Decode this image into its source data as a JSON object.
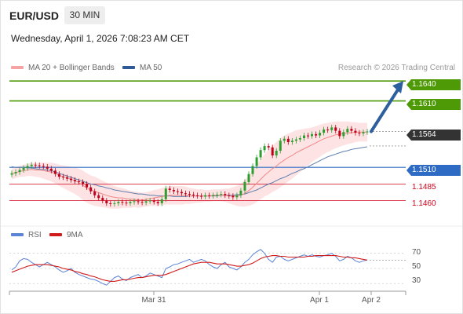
{
  "header": {
    "symbol": "EUR/USD",
    "timeframe": "30 MIN",
    "datetime": "Wednesday, April 1, 2026 7:08:23 AM CET",
    "legend_ma20": "MA 20 + Bollinger Bands",
    "legend_ma50": "MA 50",
    "credit": "Research © 2026 Trading Central",
    "legend_rsi": "RSI",
    "legend_9ma": "9MA"
  },
  "colors": {
    "ma20": "#f08a8a",
    "bollinger_fill": "#fde3e3",
    "ma50": "#5f7fae",
    "resistance": "#4e9a06",
    "pivot": "#2d6bc4",
    "support": "#d0021b",
    "current": "#333333",
    "arrow": "#2d5f9e",
    "up_candle": "#2e9e2e",
    "down_candle": "#c0001a",
    "rsi": "#5b84d6",
    "rsi_ma": "#d11b1b"
  },
  "chart_data": [
    {
      "type": "candlestick",
      "title": "EUR/USD",
      "timeframe": "30 MIN",
      "x_tick_labels": [
        "Mar 31",
        "Apr 1",
        "Apr 2"
      ],
      "ylim": [
        1.1424,
        1.1652
      ],
      "levels": [
        {
          "value": 1.164,
          "label": "1.1640",
          "kind": "resistance"
        },
        {
          "value": 1.161,
          "label": "1.1610",
          "kind": "resistance"
        },
        {
          "value": 1.1564,
          "label": "1.1564",
          "kind": "current"
        },
        {
          "value": 1.151,
          "label": "1.1510",
          "kind": "pivot"
        },
        {
          "value": 1.1485,
          "label": "1.1485",
          "kind": "support"
        },
        {
          "value": 1.146,
          "label": "1.1460",
          "kind": "support"
        }
      ],
      "forecast_arrow": {
        "from_price": 1.1564,
        "to_price": 1.164
      },
      "closes": [
        1.1501,
        1.1503,
        1.1506,
        1.1509,
        1.1512,
        1.1514,
        1.1513,
        1.1512,
        1.1511,
        1.1508,
        1.1505,
        1.15,
        1.1496,
        1.1495,
        1.1493,
        1.1491,
        1.1489,
        1.1488,
        1.1485,
        1.148,
        1.1474,
        1.1468,
        1.1464,
        1.146,
        1.1456,
        1.1455,
        1.1456,
        1.1458,
        1.1457,
        1.1456,
        1.1458,
        1.1459,
        1.1458,
        1.1457,
        1.1459,
        1.146,
        1.1458,
        1.1456,
        1.1462,
        1.1478,
        1.1476,
        1.1474,
        1.1473,
        1.1471,
        1.147,
        1.1469,
        1.1468,
        1.1467,
        1.1466,
        1.1468,
        1.1467,
        1.1468,
        1.1469,
        1.147,
        1.1468,
        1.1467,
        1.1465,
        1.1468,
        1.1475,
        1.1488,
        1.15,
        1.1512,
        1.1525,
        1.1536,
        1.1542,
        1.154,
        1.1528,
        1.1535,
        1.155,
        1.1553,
        1.1548,
        1.155,
        1.1552,
        1.1554,
        1.1558,
        1.1557,
        1.156,
        1.1558,
        1.1562,
        1.1567,
        1.1566,
        1.157,
        1.1565,
        1.1557,
        1.1563,
        1.1568,
        1.1565,
        1.1562,
        1.1561,
        1.1563,
        1.1564
      ],
      "ma20": [
        1.15,
        1.1502,
        1.1504,
        1.1505,
        1.1506,
        1.1507,
        1.1506,
        1.1506,
        1.1505,
        1.1504,
        1.1503,
        1.1501,
        1.1498,
        1.1496,
        1.1494,
        1.1492,
        1.149,
        1.1487,
        1.1483,
        1.1479,
        1.1476,
        1.1474,
        1.1472,
        1.147,
        1.1468,
        1.1466,
        1.1465,
        1.1464,
        1.1464,
        1.1463,
        1.1462,
        1.1462,
        1.1461,
        1.1461,
        1.1462,
        1.1463,
        1.1464,
        1.1465,
        1.1466,
        1.1467,
        1.1468,
        1.1468,
        1.1468,
        1.1468,
        1.1468,
        1.1467,
        1.1467,
        1.1467,
        1.1467,
        1.1467,
        1.1467,
        1.1468,
        1.1468,
        1.1468,
        1.1468,
        1.1467,
        1.1467,
        1.1467,
        1.1468,
        1.1471,
        1.1475,
        1.148,
        1.1486,
        1.1492,
        1.1498,
        1.1503,
        1.1508,
        1.1512,
        1.1517,
        1.1521,
        1.1525,
        1.1528,
        1.1532,
        1.1535,
        1.1538,
        1.1541,
        1.1544,
        1.1547,
        1.155,
        1.1553,
        1.1555,
        1.1557,
        1.1559,
        1.156,
        1.1561,
        1.1562,
        1.1562,
        1.1563,
        1.1563,
        1.1563,
        1.1563
      ],
      "ma50": [
        1.1511,
        1.151,
        1.151,
        1.151,
        1.1509,
        1.1509,
        1.1508,
        1.1507,
        1.1507,
        1.1506,
        1.1505,
        1.1503,
        1.1501,
        1.1499,
        1.1497,
        1.1495,
        1.1493,
        1.1491,
        1.1489,
        1.1487,
        1.1485,
        1.1484,
        1.1482,
        1.1481,
        1.1479,
        1.1478,
        1.1476,
        1.1475,
        1.1474,
        1.1473,
        1.1472,
        1.1471,
        1.147,
        1.147,
        1.1469,
        1.1468,
        1.1468,
        1.1467,
        1.1467,
        1.1467,
        1.1467,
        1.1466,
        1.1466,
        1.1466,
        1.1466,
        1.1467,
        1.1467,
        1.1467,
        1.1467,
        1.1467,
        1.1467,
        1.1467,
        1.1467,
        1.1468,
        1.1468,
        1.1468,
        1.1468,
        1.1469,
        1.1469,
        1.147,
        1.1472,
        1.1474,
        1.1476,
        1.1479,
        1.1482,
        1.1485,
        1.1487,
        1.149,
        1.1493,
        1.1495,
        1.1498,
        1.1501,
        1.1503,
        1.1506,
        1.1508,
        1.1511,
        1.1514,
        1.1517,
        1.152,
        1.1523,
        1.1526,
        1.1528,
        1.153,
        1.1532,
        1.1534,
        1.1535,
        1.1537,
        1.1538,
        1.1539,
        1.154,
        1.1541
      ],
      "bollinger_half_width": [
        0.0008,
        0.0008,
        0.0008,
        0.0009,
        0.0009,
        0.001,
        0.001,
        0.0011,
        0.0012,
        0.0013,
        0.0014,
        0.0015,
        0.0016,
        0.0017,
        0.0018,
        0.0019,
        0.002,
        0.0021,
        0.0022,
        0.0022,
        0.0022,
        0.0022,
        0.0021,
        0.002,
        0.0019,
        0.0018,
        0.0017,
        0.0016,
        0.0015,
        0.0014,
        0.0013,
        0.0012,
        0.0012,
        0.0011,
        0.0011,
        0.0011,
        0.0012,
        0.0012,
        0.0013,
        0.0013,
        0.0014,
        0.0014,
        0.0014,
        0.0014,
        0.0013,
        0.0012,
        0.0011,
        0.001,
        0.001,
        0.0009,
        0.0009,
        0.0009,
        0.0009,
        0.0009,
        0.001,
        0.0011,
        0.0013,
        0.0015,
        0.0017,
        0.002,
        0.0023,
        0.0026,
        0.0028,
        0.003,
        0.0032,
        0.0034,
        0.0035,
        0.0036,
        0.0037,
        0.0037,
        0.0036,
        0.0035,
        0.0034,
        0.0032,
        0.003,
        0.0028,
        0.0026,
        0.0025,
        0.0024,
        0.0023,
        0.0022,
        0.0021,
        0.002,
        0.0019,
        0.0018,
        0.0017,
        0.0016,
        0.0015,
        0.0014,
        0.0014,
        0.0014
      ]
    },
    {
      "type": "line",
      "title": "RSI",
      "ylim": [
        22,
        80
      ],
      "y_ticks": [
        70,
        50,
        30
      ],
      "series": [
        {
          "name": "RSI",
          "values": [
            48,
            52,
            60,
            63,
            62,
            58,
            55,
            52,
            55,
            58,
            55,
            52,
            48,
            45,
            47,
            50,
            45,
            42,
            40,
            38,
            36,
            35,
            33,
            30,
            28,
            33,
            38,
            40,
            36,
            34,
            38,
            40,
            42,
            38,
            40,
            44,
            42,
            40,
            38,
            50,
            52,
            55,
            56,
            58,
            60,
            62,
            58,
            60,
            62,
            60,
            55,
            52,
            50,
            55,
            58,
            52,
            50,
            48,
            52,
            58,
            62,
            68,
            72,
            75,
            70,
            62,
            58,
            65,
            66,
            62,
            60,
            62,
            64,
            66,
            68,
            66,
            68,
            66,
            65,
            67,
            68,
            70,
            66,
            60,
            62,
            66,
            64,
            60,
            58,
            60,
            61
          ]
        },
        {
          "name": "9MA",
          "values": [
            45,
            47,
            49,
            51,
            53,
            54,
            55,
            55,
            55,
            55,
            54,
            53,
            52,
            50,
            49,
            48,
            46,
            45,
            43,
            42,
            40,
            39,
            37,
            35,
            34,
            33,
            33,
            34,
            35,
            35,
            36,
            37,
            38,
            38,
            39,
            40,
            41,
            41,
            41,
            42,
            44,
            46,
            48,
            50,
            52,
            54,
            56,
            57,
            58,
            58,
            58,
            57,
            56,
            56,
            56,
            55,
            54,
            53,
            53,
            54,
            55,
            57,
            60,
            63,
            65,
            66,
            67,
            67,
            66,
            66,
            65,
            65,
            65,
            65,
            65,
            66,
            66,
            67,
            67,
            67,
            67,
            67,
            67,
            66,
            65,
            65,
            64,
            64,
            63,
            62,
            61
          ]
        }
      ]
    }
  ]
}
